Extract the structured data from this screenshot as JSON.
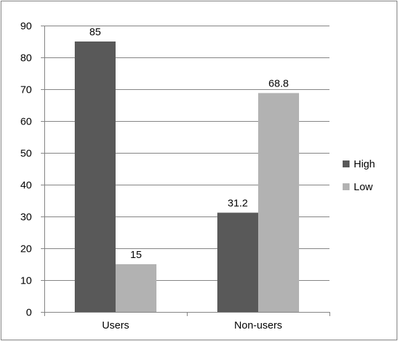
{
  "chart_data": {
    "type": "bar",
    "categories": [
      "Users",
      "Non-users"
    ],
    "series": [
      {
        "name": "High",
        "values": [
          85,
          31.2
        ],
        "color": "#595959"
      },
      {
        "name": "Low",
        "values": [
          15,
          68.8
        ],
        "color": "#b2b2b2"
      }
    ],
    "data_labels": [
      [
        "85",
        "31.2"
      ],
      [
        "15",
        "68.8"
      ]
    ],
    "ylim": [
      0,
      90
    ],
    "y_ticks": [
      0,
      10,
      20,
      30,
      40,
      50,
      60,
      70,
      80,
      90
    ],
    "y_tick_labels": [
      "0",
      "10",
      "20",
      "30",
      "40",
      "50",
      "60",
      "70",
      "80",
      "90"
    ],
    "grid": true,
    "legend_position": "right",
    "border_color": "#7f7f7f",
    "gridline_color": "#7f7f7f"
  }
}
